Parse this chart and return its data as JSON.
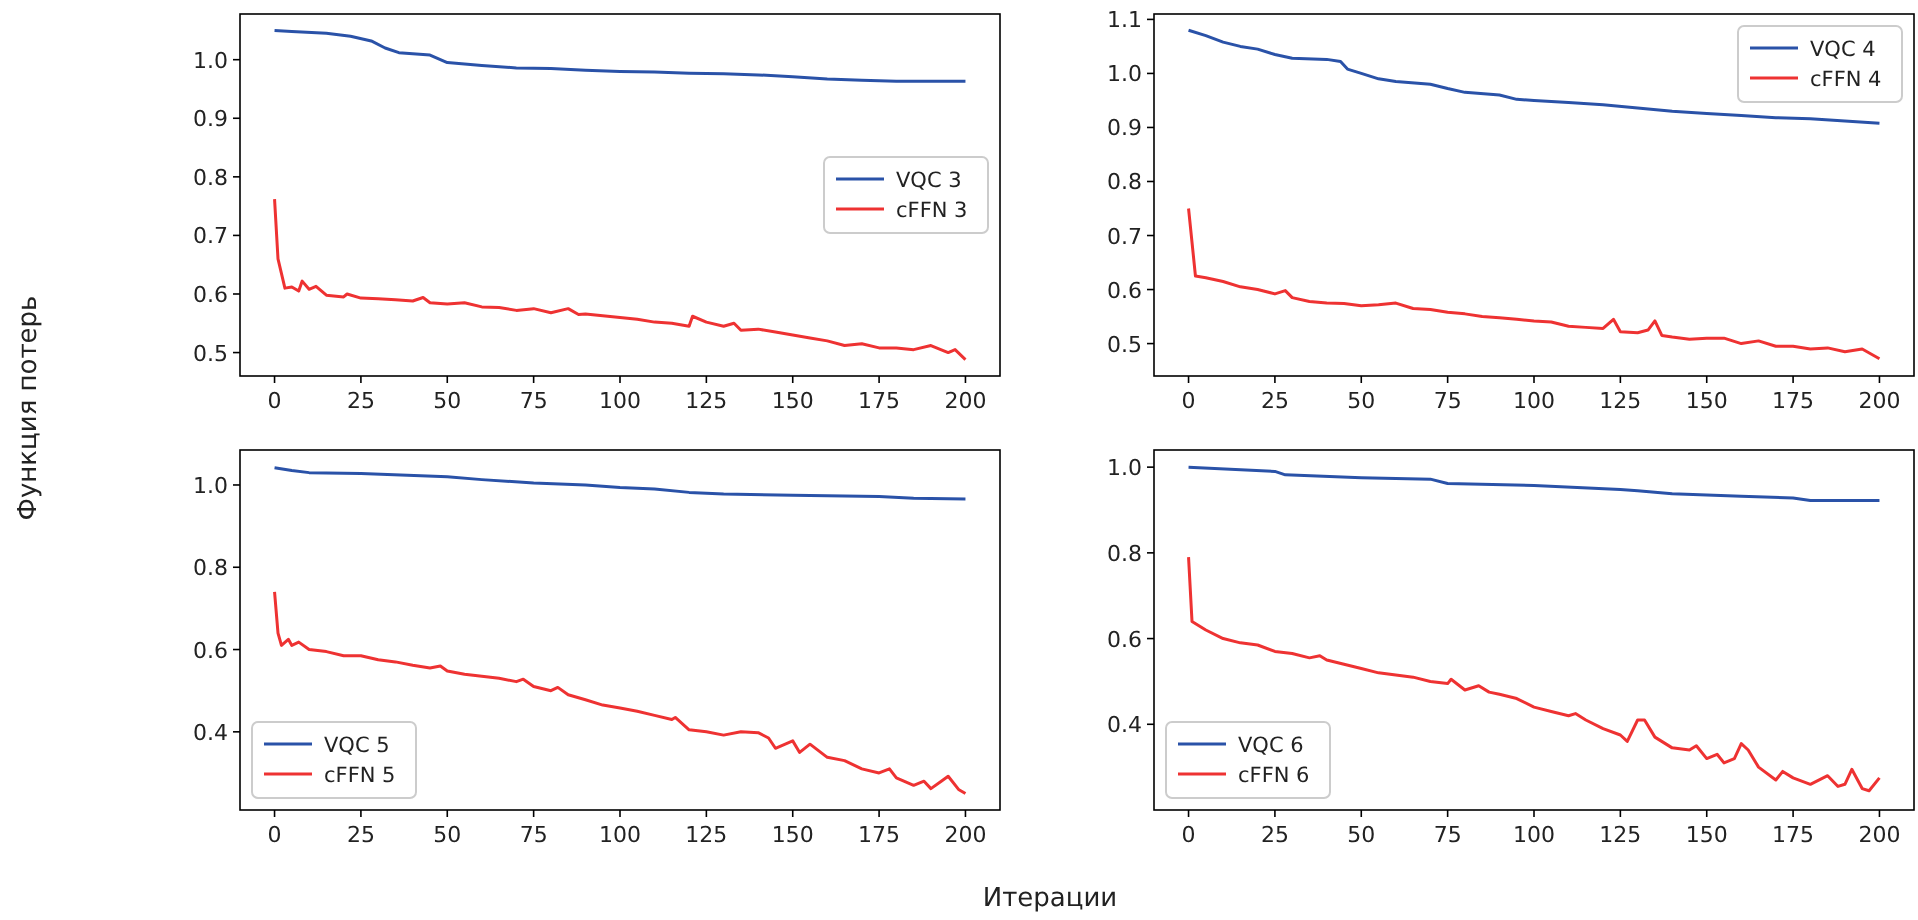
{
  "chart_data": [
    {
      "type": "line",
      "ylabel": "Функция потерь",
      "xlim": [
        -10,
        210
      ],
      "xticks": [
        0,
        25,
        50,
        75,
        100,
        125,
        150,
        175,
        200
      ],
      "ylim": [
        0.46,
        1.078
      ],
      "yticks": [
        {
          "value": 0.5,
          "label": "0.5"
        },
        {
          "value": 0.6,
          "label": "0.6"
        },
        {
          "value": 0.7,
          "label": "0.7"
        },
        {
          "value": 0.8,
          "label": "0.8"
        },
        {
          "value": 0.9,
          "label": "0.9"
        },
        {
          "value": 1.0,
          "label": "1.0"
        }
      ],
      "legend": "center right",
      "grid": false,
      "series": [
        {
          "name": "VQC 3",
          "color": "#2a52a8",
          "x": [
            0,
            5,
            15,
            22,
            28,
            32,
            36,
            45,
            50,
            60,
            70,
            80,
            90,
            100,
            110,
            120,
            130,
            140,
            150,
            160,
            170,
            180,
            190,
            200
          ],
          "values": [
            1.05,
            1.048,
            1.045,
            1.04,
            1.032,
            1.02,
            1.012,
            1.008,
            0.995,
            0.99,
            0.986,
            0.985,
            0.982,
            0.98,
            0.979,
            0.977,
            0.976,
            0.974,
            0.971,
            0.967,
            0.965,
            0.963,
            0.963,
            0.963
          ]
        },
        {
          "name": "cFFN 3",
          "color": "#ee3232",
          "x": [
            0,
            1,
            3,
            5,
            7,
            8,
            10,
            12,
            15,
            20,
            21,
            25,
            30,
            35,
            40,
            43,
            45,
            50,
            55,
            60,
            65,
            70,
            75,
            80,
            85,
            88,
            90,
            95,
            100,
            105,
            110,
            115,
            120,
            121,
            125,
            130,
            133,
            135,
            140,
            145,
            150,
            155,
            160,
            165,
            170,
            175,
            180,
            185,
            190,
            195,
            197,
            200
          ],
          "values": [
            0.762,
            0.66,
            0.61,
            0.612,
            0.605,
            0.622,
            0.608,
            0.613,
            0.598,
            0.595,
            0.6,
            0.593,
            0.592,
            0.59,
            0.588,
            0.594,
            0.585,
            0.583,
            0.585,
            0.578,
            0.577,
            0.572,
            0.575,
            0.568,
            0.575,
            0.565,
            0.566,
            0.563,
            0.56,
            0.557,
            0.552,
            0.55,
            0.545,
            0.562,
            0.552,
            0.545,
            0.55,
            0.538,
            0.54,
            0.535,
            0.53,
            0.525,
            0.52,
            0.512,
            0.515,
            0.508,
            0.508,
            0.505,
            0.512,
            0.5,
            0.505,
            0.488
          ]
        }
      ]
    },
    {
      "type": "line",
      "xlim": [
        -10,
        210
      ],
      "xticks": [
        0,
        25,
        50,
        75,
        100,
        125,
        150,
        175,
        200
      ],
      "ylim": [
        0.44,
        1.11
      ],
      "yticks": [
        {
          "value": 0.5,
          "label": "0.5"
        },
        {
          "value": 0.6,
          "label": "0.6"
        },
        {
          "value": 0.7,
          "label": "0.7"
        },
        {
          "value": 0.8,
          "label": "0.8"
        },
        {
          "value": 0.9,
          "label": "0.9"
        },
        {
          "value": 1.0,
          "label": "1.0"
        },
        {
          "value": 1.1,
          "label": "1.1"
        }
      ],
      "legend": "top right",
      "grid": false,
      "series": [
        {
          "name": "VQC 4",
          "color": "#2a52a8",
          "x": [
            0,
            5,
            10,
            15,
            20,
            25,
            30,
            40,
            44,
            46,
            50,
            55,
            60,
            70,
            75,
            80,
            90,
            95,
            100,
            110,
            120,
            130,
            140,
            150,
            160,
            170,
            180,
            190,
            200
          ],
          "values": [
            1.08,
            1.07,
            1.058,
            1.05,
            1.045,
            1.035,
            1.028,
            1.026,
            1.022,
            1.008,
            1.0,
            0.99,
            0.985,
            0.98,
            0.972,
            0.965,
            0.96,
            0.952,
            0.95,
            0.946,
            0.942,
            0.936,
            0.93,
            0.926,
            0.922,
            0.918,
            0.916,
            0.912,
            0.908
          ]
        },
        {
          "name": "cFFN 4",
          "color": "#ee3232",
          "x": [
            0,
            2,
            5,
            10,
            15,
            20,
            25,
            28,
            30,
            35,
            40,
            45,
            50,
            55,
            60,
            65,
            70,
            75,
            80,
            85,
            90,
            95,
            100,
            105,
            110,
            115,
            120,
            123,
            125,
            130,
            133,
            135,
            137,
            140,
            145,
            150,
            155,
            160,
            165,
            170,
            175,
            180,
            185,
            190,
            195,
            200
          ],
          "values": [
            0.75,
            0.625,
            0.622,
            0.615,
            0.605,
            0.6,
            0.592,
            0.598,
            0.585,
            0.578,
            0.575,
            0.574,
            0.57,
            0.572,
            0.575,
            0.565,
            0.563,
            0.558,
            0.555,
            0.55,
            0.548,
            0.545,
            0.542,
            0.54,
            0.532,
            0.53,
            0.528,
            0.545,
            0.522,
            0.52,
            0.525,
            0.542,
            0.515,
            0.512,
            0.508,
            0.51,
            0.51,
            0.5,
            0.505,
            0.495,
            0.495,
            0.49,
            0.492,
            0.485,
            0.49,
            0.472
          ]
        }
      ]
    },
    {
      "type": "line",
      "xlabel": "Итерации",
      "xlim": [
        -10,
        210
      ],
      "xticks": [
        0,
        25,
        50,
        75,
        100,
        125,
        150,
        175,
        200
      ],
      "ylim": [
        0.21,
        1.085
      ],
      "yticks": [
        {
          "value": 0.4,
          "label": "0.4"
        },
        {
          "value": 0.6,
          "label": "0.6"
        },
        {
          "value": 0.8,
          "label": "0.8"
        },
        {
          "value": 1.0,
          "label": "1.0"
        }
      ],
      "legend": "bottom left",
      "grid": false,
      "series": [
        {
          "name": "VQC 5",
          "color": "#2a52a8",
          "x": [
            0,
            5,
            10,
            25,
            50,
            60,
            75,
            90,
            100,
            110,
            120,
            130,
            150,
            175,
            185,
            200
          ],
          "values": [
            1.042,
            1.035,
            1.03,
            1.028,
            1.02,
            1.013,
            1.005,
            1.0,
            0.994,
            0.99,
            0.982,
            0.978,
            0.975,
            0.972,
            0.968,
            0.966
          ]
        },
        {
          "name": "cFFN 5",
          "color": "#ee3232",
          "x": [
            0,
            1,
            2,
            4,
            5,
            7,
            10,
            15,
            20,
            25,
            30,
            35,
            40,
            45,
            48,
            50,
            55,
            60,
            65,
            70,
            72,
            75,
            80,
            82,
            85,
            90,
            95,
            100,
            105,
            110,
            115,
            116,
            120,
            125,
            130,
            135,
            140,
            143,
            145,
            150,
            152,
            155,
            160,
            165,
            170,
            175,
            178,
            180,
            185,
            188,
            190,
            193,
            195,
            198,
            200
          ],
          "values": [
            0.74,
            0.64,
            0.61,
            0.625,
            0.61,
            0.618,
            0.6,
            0.595,
            0.585,
            0.585,
            0.575,
            0.57,
            0.562,
            0.555,
            0.56,
            0.548,
            0.54,
            0.535,
            0.53,
            0.522,
            0.528,
            0.51,
            0.5,
            0.508,
            0.49,
            0.478,
            0.465,
            0.458,
            0.45,
            0.44,
            0.43,
            0.435,
            0.405,
            0.4,
            0.392,
            0.4,
            0.398,
            0.385,
            0.36,
            0.378,
            0.35,
            0.37,
            0.338,
            0.33,
            0.31,
            0.3,
            0.31,
            0.288,
            0.27,
            0.28,
            0.262,
            0.28,
            0.292,
            0.26,
            0.25
          ]
        }
      ]
    },
    {
      "type": "line",
      "xlim": [
        -10,
        210
      ],
      "xticks": [
        0,
        25,
        50,
        75,
        100,
        125,
        150,
        175,
        200
      ],
      "ylim": [
        0.2,
        1.04
      ],
      "yticks": [
        {
          "value": 0.4,
          "label": "0.4"
        },
        {
          "value": 0.6,
          "label": "0.6"
        },
        {
          "value": 0.8,
          "label": "0.8"
        },
        {
          "value": 1.0,
          "label": "1.0"
        }
      ],
      "legend": "bottom left",
      "grid": false,
      "series": [
        {
          "name": "VQC 6",
          "color": "#2a52a8",
          "x": [
            0,
            25,
            28,
            50,
            70,
            75,
            100,
            125,
            130,
            140,
            160,
            175,
            180,
            200
          ],
          "values": [
            1.0,
            0.99,
            0.982,
            0.975,
            0.972,
            0.962,
            0.957,
            0.948,
            0.945,
            0.938,
            0.932,
            0.928,
            0.922,
            0.922
          ]
        },
        {
          "name": "cFFN 6",
          "color": "#ee3232",
          "x": [
            0,
            1,
            5,
            10,
            15,
            20,
            25,
            30,
            35,
            38,
            40,
            45,
            50,
            55,
            60,
            65,
            70,
            75,
            76,
            80,
            84,
            87,
            90,
            95,
            100,
            105,
            110,
            112,
            115,
            120,
            125,
            127,
            130,
            132,
            135,
            140,
            145,
            147,
            150,
            153,
            155,
            158,
            160,
            162,
            165,
            170,
            172,
            175,
            180,
            185,
            188,
            190,
            192,
            195,
            197,
            200
          ],
          "values": [
            0.79,
            0.64,
            0.62,
            0.6,
            0.59,
            0.585,
            0.57,
            0.565,
            0.555,
            0.56,
            0.55,
            0.54,
            0.53,
            0.52,
            0.515,
            0.51,
            0.5,
            0.495,
            0.505,
            0.48,
            0.49,
            0.475,
            0.47,
            0.46,
            0.44,
            0.43,
            0.42,
            0.425,
            0.41,
            0.39,
            0.375,
            0.36,
            0.41,
            0.41,
            0.37,
            0.345,
            0.34,
            0.35,
            0.32,
            0.33,
            0.31,
            0.32,
            0.355,
            0.34,
            0.3,
            0.27,
            0.29,
            0.275,
            0.26,
            0.28,
            0.255,
            0.26,
            0.295,
            0.25,
            0.245,
            0.275
          ]
        }
      ]
    }
  ]
}
